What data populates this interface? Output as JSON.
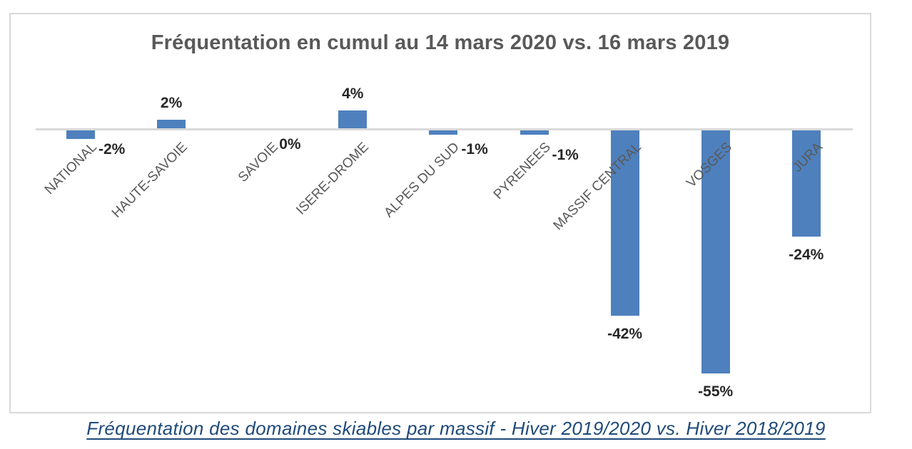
{
  "chart_data": {
    "type": "bar",
    "title": "Fréquentation en cumul au 14 mars 2020 vs. 16 mars 2019",
    "categories": [
      "NATIONAL",
      "HAUTE-SAVOIE",
      "SAVOIE",
      "ISERE-DROME",
      "ALPES DU SUD",
      "PYRENEES",
      "MASSIF CENTRAL",
      "VOSGES",
      "JURA"
    ],
    "values": [
      -2,
      2,
      0,
      4,
      -1,
      -1,
      -42,
      -55,
      -24
    ],
    "data_labels": [
      "-2%",
      "2%",
      "0%",
      "4%",
      "-1%",
      "-1%",
      "-42%",
      "-55%",
      "-24%"
    ],
    "xlabel": "",
    "ylabel": "",
    "ylim": [
      -60,
      6
    ],
    "grid": false,
    "legend": false,
    "colors": {
      "bar": "#4e80bd",
      "axis": "#d9d9d9",
      "title": "#595959",
      "data_label": "#262626",
      "category_label": "#595959"
    }
  },
  "caption": {
    "text": "Fréquentation des domaines skiables par massif - Hiver 2019/2020 vs. Hiver 2018/2019",
    "color": "#1f4a7a"
  }
}
